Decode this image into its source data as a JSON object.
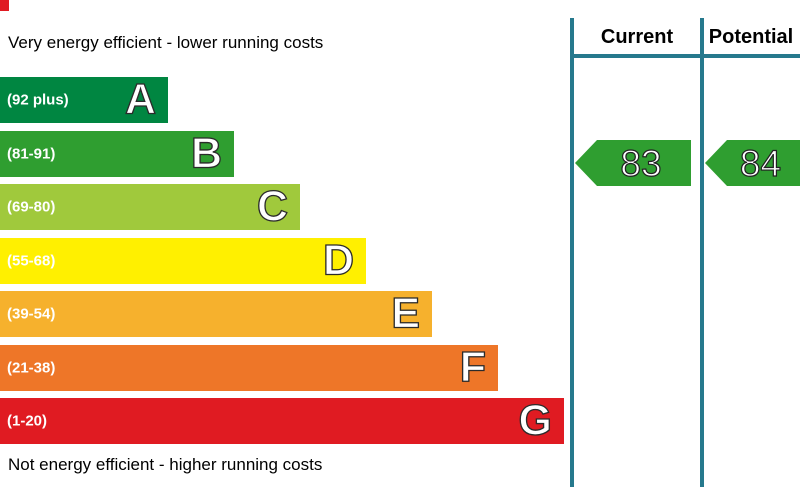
{
  "chart_data": {
    "type": "bar",
    "title": "",
    "categories": [
      "A",
      "B",
      "C",
      "D",
      "E",
      "F",
      "G"
    ],
    "band_ranges": [
      "92 plus",
      "81-91",
      "69-80",
      "55-68",
      "39-54",
      "21-38",
      "1-20"
    ],
    "band_colors": [
      "#008641",
      "#2f9e30",
      "#a0c93c",
      "#fff000",
      "#f6b12d",
      "#ee7628",
      "#e01b22"
    ],
    "bar_lengths_relative": [
      1,
      1.39,
      1.79,
      2.19,
      2.58,
      2.96,
      3.36
    ],
    "series": [
      {
        "name": "Current",
        "value": 83,
        "band": "B"
      },
      {
        "name": "Potential",
        "value": 84,
        "band": "B"
      }
    ],
    "annotations": [
      "Very energy efficient - lower running costs",
      "Not energy efficient - higher running costs"
    ],
    "legend_position": "none",
    "grid": false
  },
  "labels": {
    "top": "Very energy efficient - lower running costs",
    "bottom": "Not energy efficient - higher running costs"
  },
  "columns": {
    "current": "Current",
    "potential": "Potential"
  },
  "bands": [
    {
      "letter": "A",
      "range": "(92 plus)",
      "color": "#008641"
    },
    {
      "letter": "B",
      "range": "(81-91)",
      "color": "#2f9e30"
    },
    {
      "letter": "C",
      "range": "(69-80)",
      "color": "#a0c93c"
    },
    {
      "letter": "D",
      "range": "(55-68)",
      "color": "#fff000"
    },
    {
      "letter": "E",
      "range": "(39-54)",
      "color": "#f6b12d"
    },
    {
      "letter": "F",
      "range": "(21-38)",
      "color": "#ee7628"
    },
    {
      "letter": "G",
      "range": "(1-20)",
      "color": "#e01b22"
    }
  ],
  "current": {
    "value": "83",
    "color": "#2f9e30"
  },
  "potential": {
    "value": "84",
    "color": "#2f9e30"
  },
  "colors": {
    "divider": "#26798d",
    "corner_artifact": "#e01b22"
  }
}
